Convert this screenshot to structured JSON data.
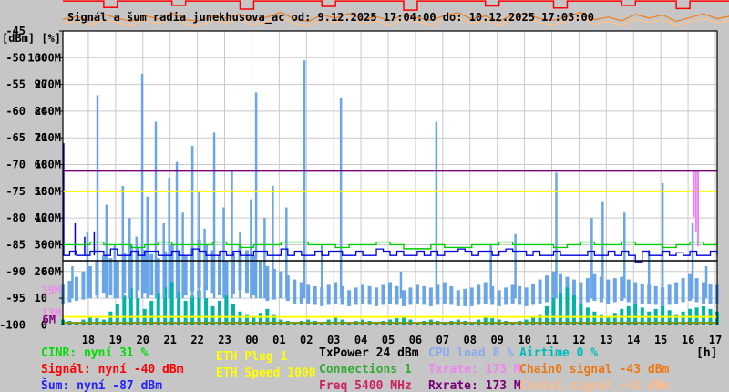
{
  "title": "Signál a šum radia junekhusova_ac od: 9.12.2025 17:04:00 do: 10.12.2025 17:03:00",
  "axes": {
    "y_unit_header": "[dBm] [%]",
    "x_unit": "[h]",
    "y_rows": [
      {
        "dbm": "-45",
        "pct": "",
        "m": ""
      },
      {
        "dbm": "-50",
        "pct": "100",
        "m": "300M"
      },
      {
        "dbm": "-55",
        "pct": "90",
        "m": "270M"
      },
      {
        "dbm": "-60",
        "pct": "80",
        "m": "240M"
      },
      {
        "dbm": "-65",
        "pct": "70",
        "m": "210M"
      },
      {
        "dbm": "-70",
        "pct": "60",
        "m": "180M"
      },
      {
        "dbm": "-75",
        "pct": "50",
        "m": "150M"
      },
      {
        "dbm": "-80",
        "pct": "40",
        "m": "120M"
      },
      {
        "dbm": "-85",
        "pct": "30",
        "m": "90M"
      },
      {
        "dbm": "-90",
        "pct": "20",
        "m": "60M"
      },
      {
        "dbm": "-95",
        "pct": "10",
        "m": ""
      },
      {
        "dbm": "-100",
        "pct": "0",
        "m": ""
      }
    ],
    "rate_markers": [
      {
        "text": "39M",
        "color": "#ee88ee",
        "mbit": 39,
        "right_x": 67
      },
      {
        "text": "13M",
        "color": "#ee88ee",
        "mbit": 13,
        "right_x": 67
      },
      {
        "text": "6M",
        "color": "#770077",
        "mbit": 6,
        "right_x": 61
      }
    ],
    "x_ticks": [
      "18",
      "19",
      "20",
      "21",
      "22",
      "23",
      "00",
      "01",
      "02",
      "03",
      "04",
      "05",
      "06",
      "07",
      "08",
      "09",
      "10",
      "11",
      "12",
      "13",
      "14",
      "15",
      "16",
      "17"
    ]
  },
  "legend": {
    "cinr": {
      "text": "CINR: nyní 31 %",
      "color": "#00dd00"
    },
    "signal": {
      "text": "Signál: nyní -40 dBm",
      "color": "#ff0000"
    },
    "sum": {
      "text": "Šum: nyní -87 dBm",
      "color": "#2222ff"
    },
    "eth_plug": {
      "text": "ETH Plug 1",
      "color": "#ffff00"
    },
    "eth_speed": {
      "text": "ETH Speed 1000",
      "color": "#ffff00"
    },
    "txpower": {
      "text": "TxPower 24 dBm",
      "color": "#000000"
    },
    "connections": {
      "text": "Connections 1",
      "color": "#33aa33"
    },
    "freq": {
      "text": "Freq 5400 MHz",
      "color": "#cc2266"
    },
    "cpu": {
      "text": "CPU load 8 %",
      "color": "#88aaee"
    },
    "txrate": {
      "text": "Txrate: 173 M",
      "color": "#ee88ee"
    },
    "rxrate": {
      "text": "Rxrate: 173 M",
      "color": "#770077"
    },
    "airtime": {
      "text": "Airtime 0 %",
      "color": "#00bbbb"
    },
    "chain0": {
      "text": "Chain0 signal -43 dBm",
      "color": "#ee7711"
    },
    "chain1": {
      "text": "Chain1 signal -43 dBm",
      "color": "#ffbb88"
    }
  },
  "chart_data": {
    "type": "line",
    "title": "Signál a šum radia junekhusova_ac",
    "x_range_hours": [
      0,
      24
    ],
    "x_start_label": "9.12.2025 17:04:00",
    "x_end_label": "10.12.2025 17:03:00",
    "ylim_dbm": [
      -100,
      -45
    ],
    "ylim_pct": [
      0,
      100
    ],
    "ylim_mbit": [
      0,
      300
    ],
    "grid": true,
    "readings": {
      "cinr_pct": 31,
      "signal_dbm": -40,
      "noise_dbm": -87,
      "eth_plug": 1,
      "eth_speed": 1000,
      "txpower_dbm": 24,
      "connections": 1,
      "freq_mhz": 5400,
      "cpu_load_pct": 8,
      "txrate_mbit": 173,
      "rxrate_mbit": 173,
      "airtime_pct": 0,
      "chain0_dbm": -43,
      "chain1_dbm": -43
    },
    "series": [
      {
        "name": "cpu-load-band",
        "color": "#6aa5e8",
        "axis": "pct",
        "type": "vspan",
        "width": 4,
        "items": [
          [
            0,
            8,
            15
          ],
          [
            0.5,
            9,
            18
          ],
          [
            1,
            10,
            22
          ],
          [
            1.5,
            12,
            26
          ],
          [
            2,
            10,
            24
          ],
          [
            2.5,
            14,
            30
          ],
          [
            3,
            12,
            28
          ],
          [
            3.5,
            10,
            25
          ],
          [
            4,
            13,
            30
          ],
          [
            4.5,
            11,
            26
          ],
          [
            5,
            14,
            32
          ],
          [
            5.5,
            12,
            28
          ],
          [
            6,
            10,
            24
          ],
          [
            6.5,
            13,
            30
          ],
          [
            7,
            11,
            26
          ],
          [
            7.5,
            9,
            22
          ],
          [
            8,
            10,
            20
          ],
          [
            8.5,
            8,
            17
          ],
          [
            9,
            8,
            15
          ],
          [
            9.5,
            7,
            14
          ],
          [
            10,
            8,
            16
          ],
          [
            10.5,
            7,
            13
          ],
          [
            11,
            8,
            15
          ],
          [
            11.5,
            7,
            14
          ],
          [
            12,
            8,
            16
          ],
          [
            12.5,
            7,
            13
          ],
          [
            13,
            8,
            15
          ],
          [
            13.5,
            7,
            14
          ],
          [
            14,
            8,
            16
          ],
          [
            14.5,
            7,
            13
          ],
          [
            15,
            7,
            14
          ],
          [
            15.5,
            8,
            16
          ],
          [
            16,
            7,
            13
          ],
          [
            16.5,
            8,
            15
          ],
          [
            17,
            7,
            14
          ],
          [
            17.5,
            8,
            17
          ],
          [
            18,
            9,
            20
          ],
          [
            18.5,
            8,
            18
          ],
          [
            19,
            8,
            16
          ],
          [
            19.5,
            9,
            19
          ],
          [
            20,
            8,
            17
          ],
          [
            20.5,
            9,
            18
          ],
          [
            21,
            8,
            16
          ],
          [
            21.5,
            8,
            15
          ],
          [
            22,
            7,
            14
          ],
          [
            22.5,
            8,
            16
          ],
          [
            23,
            9,
            19
          ],
          [
            23.5,
            8,
            16
          ],
          [
            24,
            8,
            15
          ]
        ]
      },
      {
        "name": "airtime-bars",
        "color": "#00b3a4",
        "axis": "pct",
        "type": "vbars",
        "base": 0,
        "width": 4,
        "start": 0,
        "dt": 0.5,
        "values": [
          2,
          1,
          3,
          2,
          8,
          14,
          6,
          12,
          16,
          9,
          13,
          7,
          11,
          5,
          3,
          6,
          2,
          1,
          2,
          1,
          3,
          1,
          2,
          1,
          2,
          3,
          1,
          2,
          1,
          2,
          1,
          3,
          2,
          1,
          2,
          4,
          10,
          14,
          8,
          5,
          3,
          6,
          8,
          5,
          7,
          4,
          6,
          7,
          5
        ]
      },
      {
        "name": "cpu-load-spikes",
        "color": "#6aa5e8",
        "axis": "pct",
        "type": "spikes",
        "base": 10,
        "width": 2.5,
        "items": [
          [
            0.35,
            22
          ],
          [
            0.9,
            35
          ],
          [
            1.27,
            86
          ],
          [
            1.6,
            45
          ],
          [
            1.9,
            30
          ],
          [
            2.2,
            52
          ],
          [
            2.45,
            40
          ],
          [
            2.7,
            33
          ],
          [
            2.91,
            94
          ],
          [
            3.1,
            48
          ],
          [
            3.41,
            76
          ],
          [
            3.7,
            38
          ],
          [
            3.9,
            55
          ],
          [
            4.18,
            61
          ],
          [
            4.4,
            42
          ],
          [
            4.75,
            67
          ],
          [
            5.0,
            50
          ],
          [
            5.2,
            36
          ],
          [
            5.55,
            72
          ],
          [
            5.9,
            44
          ],
          [
            6.2,
            58
          ],
          [
            6.5,
            35
          ],
          [
            6.9,
            47
          ],
          [
            7.09,
            87
          ],
          [
            7.4,
            40
          ],
          [
            7.7,
            52
          ],
          [
            8.2,
            44
          ],
          [
            8.86,
            99
          ],
          [
            9.5,
            30
          ],
          [
            10.2,
            85
          ],
          [
            12.4,
            20
          ],
          [
            13.7,
            76
          ],
          [
            15.7,
            30
          ],
          [
            16.6,
            34
          ],
          [
            18.1,
            57
          ],
          [
            19.4,
            40
          ],
          [
            19.8,
            46
          ],
          [
            20.6,
            42
          ],
          [
            21.5,
            28
          ],
          [
            22.0,
            53
          ],
          [
            23.1,
            38
          ],
          [
            23.6,
            22
          ]
        ]
      },
      {
        "name": "noise-spikes",
        "color": "#0000dd",
        "axis": "dbm",
        "type": "spikes",
        "base": -87,
        "width": 1.5,
        "items": [
          [
            0.03,
            -66
          ],
          [
            0.45,
            -81
          ],
          [
            0.8,
            -83.5
          ],
          [
            1.15,
            -82.5
          ]
        ]
      },
      {
        "name": "noise-line",
        "color": "#0000dd",
        "axis": "dbm",
        "type": "steps",
        "width": 1.3,
        "start": 0,
        "dt": 0.25,
        "values": [
          -87,
          -86.2,
          -87,
          -87,
          -86.2,
          -86.2,
          -87,
          -85.8,
          -87,
          -87,
          -86.2,
          -87,
          -86.2,
          -86.2,
          -87,
          -87,
          -86.2,
          -87,
          -87,
          -85.8,
          -86.2,
          -87,
          -87,
          -86.2,
          -87,
          -86.2,
          -87,
          -87,
          -86.2,
          -86.2,
          -87,
          -87,
          -85.8,
          -87,
          -86.2,
          -87,
          -87,
          -86.2,
          -87,
          -86.2,
          -86.2,
          -87,
          -87,
          -86.2,
          -87,
          -87,
          -85.8,
          -86.2,
          -87,
          -86.2,
          -87,
          -87,
          -86.2,
          -87,
          -86.2,
          -87,
          -86.2,
          -86.2,
          -85.8,
          -86.2,
          -87,
          -86.2,
          -86.2,
          -87,
          -86.2,
          -85.8,
          -86.2,
          -86.2,
          -87,
          -86.2,
          -87,
          -87,
          -86.2,
          -87,
          -87,
          -87,
          -87,
          -86.2,
          -87,
          -87,
          -86.2,
          -87,
          -86.2,
          -87,
          -88.2,
          -86.2,
          -87,
          -87,
          -86.2,
          -87,
          -86.5,
          -87,
          -86.2,
          -87,
          -87,
          -86.2,
          -87
        ]
      },
      {
        "name": "txpower-line",
        "color": "#000000",
        "axis": "pct",
        "type": "hline",
        "width": 1.5,
        "value": 24
      },
      {
        "name": "connections-line",
        "color": "#7f9400",
        "axis": "pct",
        "type": "hline",
        "width": 1.8,
        "value": 0.8
      },
      {
        "name": "eth-plug-line",
        "color": "#ffff00",
        "axis": "mbit",
        "type": "hline",
        "width": 2,
        "value": 9
      },
      {
        "name": "eth-speed-line",
        "color": "#ffff00",
        "axis": "mbit",
        "type": "hline",
        "width": 2,
        "value": 150
      },
      {
        "name": "txrate-dips",
        "color": "#ee88ee",
        "axis": "mbit",
        "type": "vspan",
        "width": 2,
        "items": [
          [
            23.15,
            173,
            121
          ],
          [
            23.3,
            173,
            88
          ]
        ]
      },
      {
        "name": "rxrate-line",
        "color": "#770077",
        "axis": "mbit",
        "type": "hline",
        "width": 2,
        "value": 173
      },
      {
        "name": "cinr-line",
        "color": "#00cc00",
        "axis": "pct",
        "type": "steps",
        "width": 1.4,
        "start": 0,
        "dt": 0.5,
        "values": [
          30,
          30,
          31,
          30,
          30,
          29,
          30,
          31,
          30,
          30,
          30,
          31,
          30,
          29,
          30,
          30,
          31,
          31,
          30,
          30,
          29,
          30,
          30,
          31,
          30,
          28.5,
          28.5,
          30,
          29,
          29,
          30,
          30,
          31,
          30,
          30,
          30,
          29,
          30,
          31,
          30,
          30,
          31,
          30,
          30,
          29,
          30,
          31,
          30,
          31
        ]
      },
      {
        "name": "chain1-signal-line",
        "color": "#ffc089",
        "axis": "dbm",
        "type": "jag",
        "width": 1.3,
        "start": 0,
        "dt": 0.5,
        "values": [
          -43.6,
          -43.1,
          -43.8,
          -42.9,
          -43.4,
          -44.0,
          -43.0,
          -43.6,
          -42.7,
          -43.7,
          -43.9,
          -43.0,
          -43.5,
          -42.8,
          -43.8,
          -43.2,
          -42.6,
          -43.6,
          -44.0,
          -42.9,
          -43.4,
          -42.7,
          -43.7,
          -43.1,
          -43.9,
          -42.8,
          -43.3,
          -43.8,
          -42.9,
          -42.6,
          -43.6,
          -43.0,
          -44.0,
          -42.8,
          -42.7,
          -43.5,
          -43.8,
          -43.1,
          -42.5,
          -43.7,
          -43.2,
          -43.9,
          -42.8,
          -43.4,
          -42.9,
          -44.0,
          -43.3,
          -42.7,
          -43.5,
          -43.0
        ]
      },
      {
        "name": "chain0-signal-line",
        "color": "#f08020",
        "axis": "dbm",
        "type": "jag",
        "width": 1.3,
        "start": 0,
        "dt": 0.5,
        "values": [
          -42.8,
          -42.3,
          -43.0,
          -41.9,
          -42.6,
          -43.2,
          -42.1,
          -42.8,
          -41.6,
          -42.9,
          -43.1,
          -42.2,
          -42.7,
          -41.8,
          -43.0,
          -42.4,
          -41.5,
          -42.8,
          -43.2,
          -42.0,
          -42.6,
          -41.7,
          -42.9,
          -42.3,
          -43.1,
          -41.9,
          -42.5,
          -43.0,
          -42.1,
          -41.6,
          -42.8,
          -42.2,
          -43.2,
          -42.0,
          -41.8,
          -42.7,
          -43.0,
          -42.3,
          -41.5,
          -42.9,
          -42.4,
          -43.1,
          -41.9,
          -42.6,
          -42.0,
          -43.2,
          -42.5,
          -41.8,
          -42.7,
          -42.2
        ]
      },
      {
        "name": "signal-line",
        "color": "#ff0000",
        "axis": "dbm",
        "type": "steps",
        "width": 1.5,
        "start": 0,
        "dt": 0.5,
        "values": [
          -39.4,
          -39.4,
          -39.4,
          -40.6,
          -39.4,
          -39.4,
          -39.4,
          -39.4,
          -40.2,
          -39.4,
          -39.4,
          -39.4,
          -39.4,
          -40.9,
          -39.4,
          -39.4,
          -39.4,
          -39.4,
          -39.4,
          -40.4,
          -39.4,
          -39.4,
          -39.4,
          -39.4,
          -39.4,
          -41.1,
          -39.4,
          -39.4,
          -39.4,
          -39.4,
          -39.4,
          -40.3,
          -39.4,
          -39.4,
          -39.4,
          -39.4,
          -40.7,
          -39.4,
          -39.4,
          -39.4,
          -39.4,
          -40.2,
          -39.4,
          -39.4,
          -39.4,
          -40.8,
          -39.4,
          -39.4,
          -39.4,
          -39.4
        ]
      }
    ]
  }
}
